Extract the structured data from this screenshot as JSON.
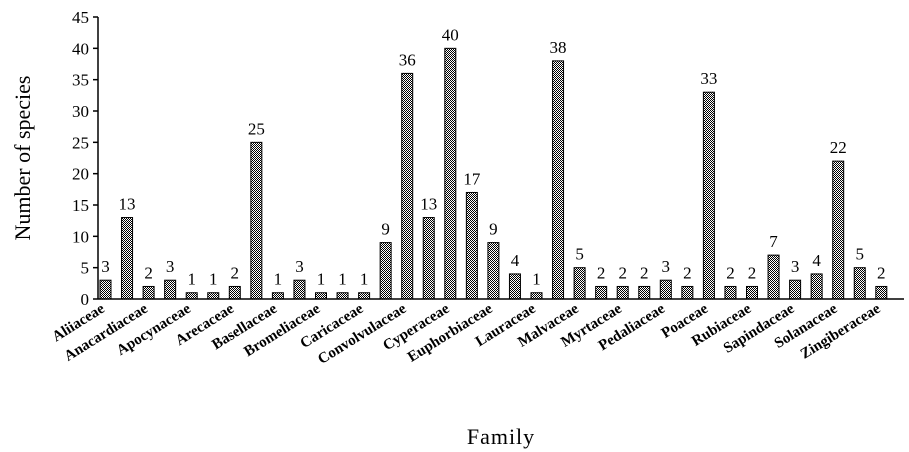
{
  "chart_data": {
    "type": "bar",
    "title": "",
    "xlabel": "Family",
    "ylabel": "Number of species",
    "ylim": [
      0,
      45
    ],
    "yticks": [
      0,
      5,
      10,
      15,
      20,
      25,
      30,
      35,
      40,
      45
    ],
    "grid": false,
    "legend": "none",
    "x_tick_labels": [
      "Aliiaceae",
      "Anacardiaceae",
      "Apocynaceae",
      "Arecaceae",
      "Basellaceae",
      "Bromeliaceae",
      "Caricaceae",
      "Convolvulaceae",
      "Cyperaceae",
      "Euphorbiaceae",
      "Lauraceae",
      "Malvaceae",
      "Myrtaceae",
      "Pedaliaceae",
      "Poaceae",
      "Rubiaceae",
      "Sapindaceae",
      "Solanaceae",
      "Zingiberaceae"
    ],
    "values": [
      3,
      13,
      2,
      3,
      1,
      1,
      2,
      25,
      1,
      3,
      1,
      1,
      1,
      9,
      36,
      13,
      40,
      17,
      9,
      4,
      1,
      38,
      5,
      2,
      2,
      2,
      3,
      2,
      33,
      2,
      2,
      7,
      3,
      4,
      22,
      5,
      2
    ],
    "bar_fill_color": "#555555"
  }
}
